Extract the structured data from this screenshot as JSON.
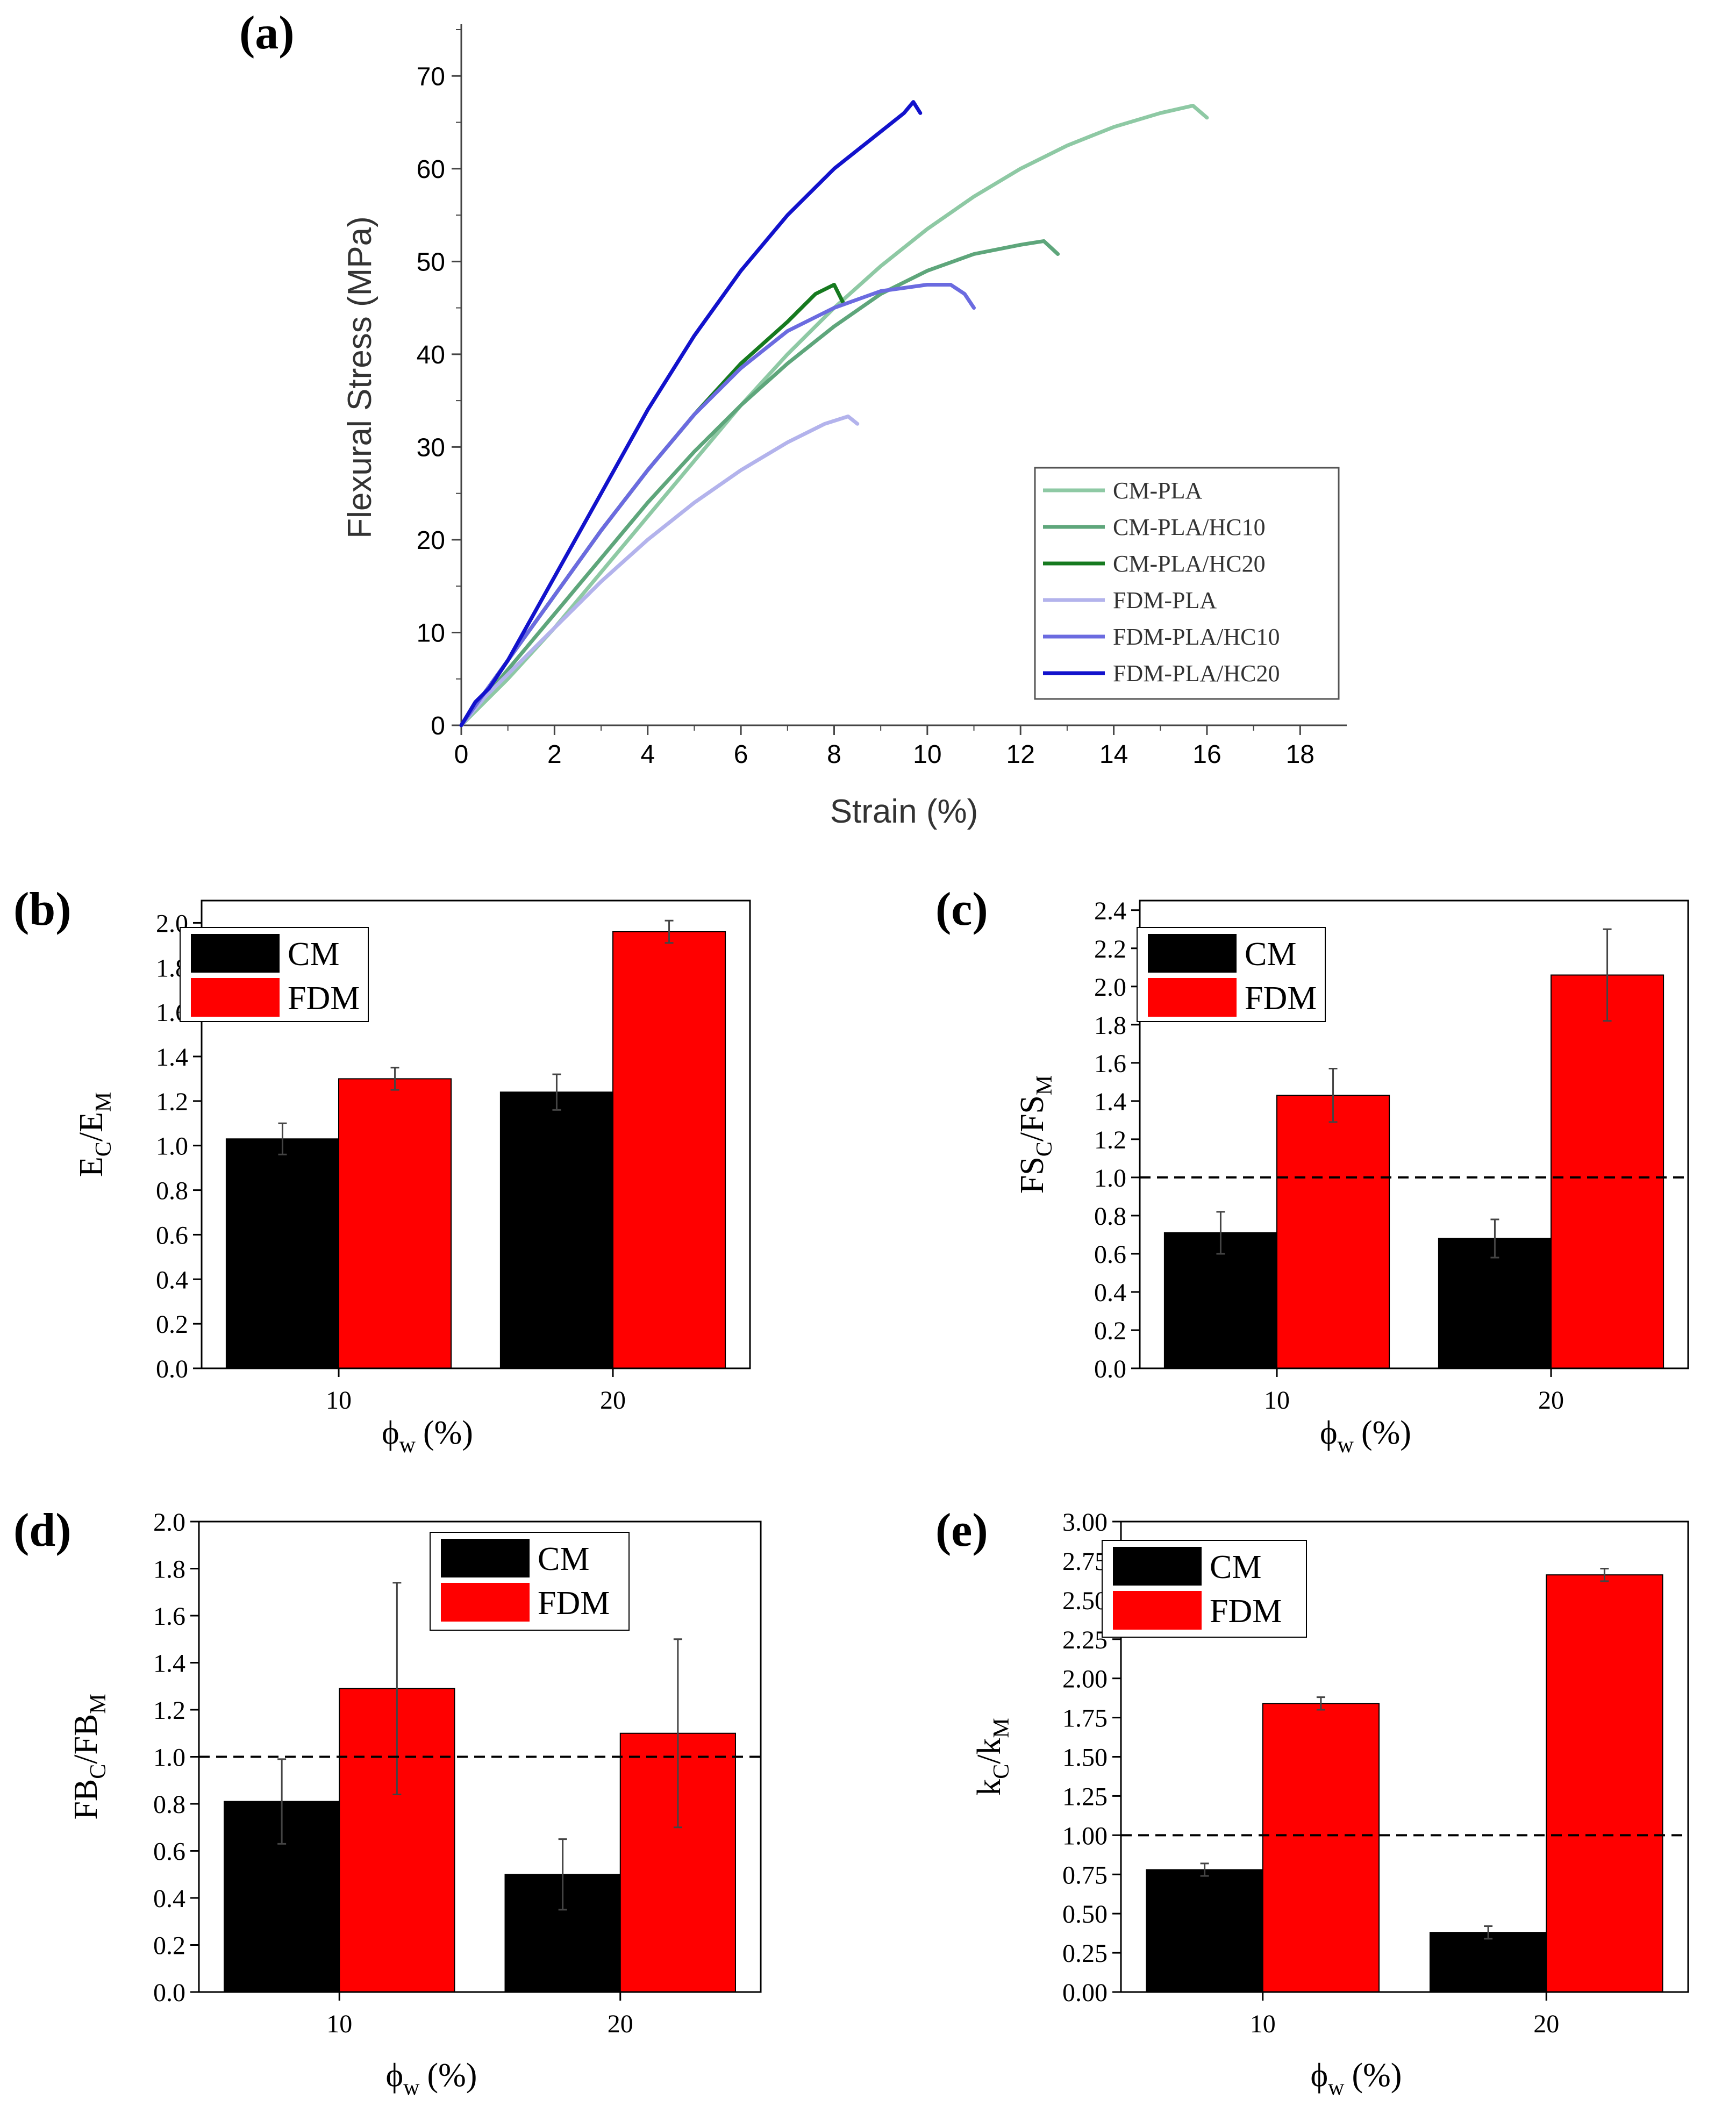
{
  "chart_data": [
    {
      "id": "a",
      "panel_label": "(a)",
      "type": "line",
      "xlabel": "Strain (%)",
      "ylabel": "Flexural Stress (MPa)",
      "xlim": [
        0,
        19
      ],
      "ylim": [
        0,
        75
      ],
      "xticks": [
        0,
        2,
        4,
        6,
        8,
        10,
        12,
        14,
        16,
        18
      ],
      "yticks": [
        0,
        10,
        20,
        30,
        40,
        50,
        60,
        70
      ],
      "legend_position": "right",
      "series": [
        {
          "name": "CM-PLA",
          "color": "#8ec9a4",
          "points": [
            [
              0,
              0
            ],
            [
              0.5,
              2.5
            ],
            [
              1,
              5
            ],
            [
              2,
              10.5
            ],
            [
              3,
              16.5
            ],
            [
              4,
              22.5
            ],
            [
              5,
              28.5
            ],
            [
              6,
              34.5
            ],
            [
              7,
              40
            ],
            [
              8,
              45
            ],
            [
              9,
              49.5
            ],
            [
              10,
              53.5
            ],
            [
              11,
              57
            ],
            [
              12,
              60
            ],
            [
              13,
              62.5
            ],
            [
              14,
              64.5
            ],
            [
              15,
              66
            ],
            [
              15.7,
              66.8
            ],
            [
              16,
              65.5
            ]
          ]
        },
        {
          "name": "CM-PLA/HC10",
          "color": "#5ea67b",
          "points": [
            [
              0,
              0
            ],
            [
              0.5,
              3
            ],
            [
              1,
              6
            ],
            [
              2,
              12
            ],
            [
              3,
              18
            ],
            [
              4,
              24
            ],
            [
              5,
              29.5
            ],
            [
              6,
              34.5
            ],
            [
              7,
              39
            ],
            [
              8,
              43
            ],
            [
              9,
              46.5
            ],
            [
              10,
              49
            ],
            [
              11,
              50.8
            ],
            [
              12,
              51.8
            ],
            [
              12.5,
              52.2
            ],
            [
              12.8,
              50.8
            ]
          ]
        },
        {
          "name": "CM-PLA/HC20",
          "color": "#167a1f",
          "points": [
            [
              0,
              0
            ],
            [
              0.5,
              3.5
            ],
            [
              1,
              7
            ],
            [
              2,
              14
            ],
            [
              3,
              21
            ],
            [
              4,
              27.5
            ],
            [
              5,
              33.5
            ],
            [
              6,
              39
            ],
            [
              7,
              43.5
            ],
            [
              7.6,
              46.5
            ],
            [
              8,
              47.5
            ],
            [
              8.2,
              45.5
            ]
          ]
        },
        {
          "name": "FDM-PLA",
          "color": "#b3b3ec",
          "points": [
            [
              0,
              0
            ],
            [
              0.5,
              3
            ],
            [
              1,
              5.5
            ],
            [
              2,
              10.5
            ],
            [
              3,
              15.5
            ],
            [
              4,
              20
            ],
            [
              5,
              24
            ],
            [
              6,
              27.5
            ],
            [
              7,
              30.5
            ],
            [
              7.8,
              32.5
            ],
            [
              8.3,
              33.3
            ],
            [
              8.5,
              32.5
            ]
          ]
        },
        {
          "name": "FDM-PLA/HC10",
          "color": "#6b6be0",
          "points": [
            [
              0,
              0
            ],
            [
              0.5,
              3.5
            ],
            [
              1,
              7
            ],
            [
              2,
              14
            ],
            [
              3,
              21
            ],
            [
              4,
              27.5
            ],
            [
              5,
              33.5
            ],
            [
              6,
              38.5
            ],
            [
              7,
              42.5
            ],
            [
              8,
              45
            ],
            [
              9,
              46.8
            ],
            [
              10,
              47.5
            ],
            [
              10.5,
              47.5
            ],
            [
              10.8,
              46.5
            ],
            [
              11,
              45
            ]
          ]
        },
        {
          "name": "FDM-PLA/HC20",
          "color": "#1212cc",
          "points": [
            [
              0,
              0
            ],
            [
              0.3,
              2.5
            ],
            [
              0.6,
              4
            ],
            [
              1,
              7
            ],
            [
              2,
              16
            ],
            [
              3,
              25
            ],
            [
              4,
              34
            ],
            [
              5,
              42
            ],
            [
              6,
              49
            ],
            [
              7,
              55
            ],
            [
              8,
              60
            ],
            [
              9,
              64
            ],
            [
              9.5,
              66
            ],
            [
              9.7,
              67.2
            ],
            [
              9.85,
              66
            ]
          ]
        }
      ]
    },
    {
      "id": "b",
      "panel_label": "(b)",
      "type": "bar",
      "xlabel": "ϕ",
      "xlabel_sub": "w",
      "xlabel_unit": "(%)",
      "ylabel_main": "E",
      "ylabel_sub1": "C",
      "ylabel_sep": "/E",
      "ylabel_sub2": "M",
      "ylim": [
        0,
        2.1
      ],
      "yticks": [
        "0.0",
        "0.2",
        "0.4",
        "0.6",
        "0.8",
        "1.0",
        "1.2",
        "1.4",
        "1.6",
        "1.8",
        "2.0"
      ],
      "categories": [
        "10",
        "20"
      ],
      "reference_line": null,
      "legend_position": "top-left",
      "series": [
        {
          "name": "CM",
          "color": "#000000",
          "values": [
            1.03,
            1.24
          ],
          "errors": [
            0.07,
            0.08
          ]
        },
        {
          "name": "FDM",
          "color": "#ff0000",
          "values": [
            1.3,
            1.96
          ],
          "errors": [
            0.05,
            0.05
          ]
        }
      ]
    },
    {
      "id": "c",
      "panel_label": "(c)",
      "type": "bar",
      "xlabel": "ϕ",
      "xlabel_sub": "w",
      "xlabel_unit": "(%)",
      "ylabel_main": "FS",
      "ylabel_sub1": "C",
      "ylabel_sep": "/FS",
      "ylabel_sub2": "M",
      "ylim": [
        0,
        2.45
      ],
      "yticks": [
        "0.0",
        "0.2",
        "0.4",
        "0.6",
        "0.8",
        "1.0",
        "1.2",
        "1.4",
        "1.6",
        "1.8",
        "2.0",
        "2.2",
        "2.4"
      ],
      "categories": [
        "10",
        "20"
      ],
      "reference_line": 1.0,
      "legend_position": "top-left",
      "series": [
        {
          "name": "CM",
          "color": "#000000",
          "values": [
            0.71,
            0.68
          ],
          "errors": [
            0.11,
            0.1
          ]
        },
        {
          "name": "FDM",
          "color": "#ff0000",
          "values": [
            1.43,
            2.06
          ],
          "errors": [
            0.14,
            0.24
          ]
        }
      ]
    },
    {
      "id": "d",
      "panel_label": "(d)",
      "type": "bar",
      "xlabel": "ϕ",
      "xlabel_sub": "w",
      "xlabel_unit": "(%)",
      "ylabel_main": "FB",
      "ylabel_sub1": "C",
      "ylabel_sep": "/FB",
      "ylabel_sub2": "M",
      "ylim": [
        0,
        2.0
      ],
      "yticks": [
        "0.0",
        "0.2",
        "0.4",
        "0.6",
        "0.8",
        "1.0",
        "1.2",
        "1.4",
        "1.6",
        "1.8",
        "2.0"
      ],
      "categories": [
        "10",
        "20"
      ],
      "reference_line": 1.0,
      "legend_position": "top-right",
      "series": [
        {
          "name": "CM",
          "color": "#000000",
          "values": [
            0.81,
            0.5
          ],
          "errors": [
            0.18,
            0.15
          ]
        },
        {
          "name": "FDM",
          "color": "#ff0000",
          "values": [
            1.29,
            1.1
          ],
          "errors": [
            0.45,
            0.4
          ]
        }
      ]
    },
    {
      "id": "e",
      "panel_label": "(e)",
      "type": "bar",
      "xlabel": "ϕ",
      "xlabel_sub": "w",
      "xlabel_unit": "(%)",
      "ylabel_main": "k",
      "ylabel_sub1": "C",
      "ylabel_sep": "/k",
      "ylabel_sub2": "M",
      "ylim": [
        0,
        3.0
      ],
      "yticks": [
        "0.00",
        "0.25",
        "0.50",
        "0.75",
        "1.00",
        "1.25",
        "1.50",
        "1.75",
        "2.00",
        "2.25",
        "2.50",
        "2.75",
        "3.00"
      ],
      "categories": [
        "10",
        "20"
      ],
      "reference_line": 1.0,
      "legend_position": "top-left",
      "series": [
        {
          "name": "CM",
          "color": "#000000",
          "values": [
            0.78,
            0.38
          ],
          "errors": [
            0.04,
            0.04
          ]
        },
        {
          "name": "FDM",
          "color": "#ff0000",
          "values": [
            1.84,
            2.66
          ],
          "errors": [
            0.04,
            0.04
          ]
        }
      ]
    }
  ]
}
